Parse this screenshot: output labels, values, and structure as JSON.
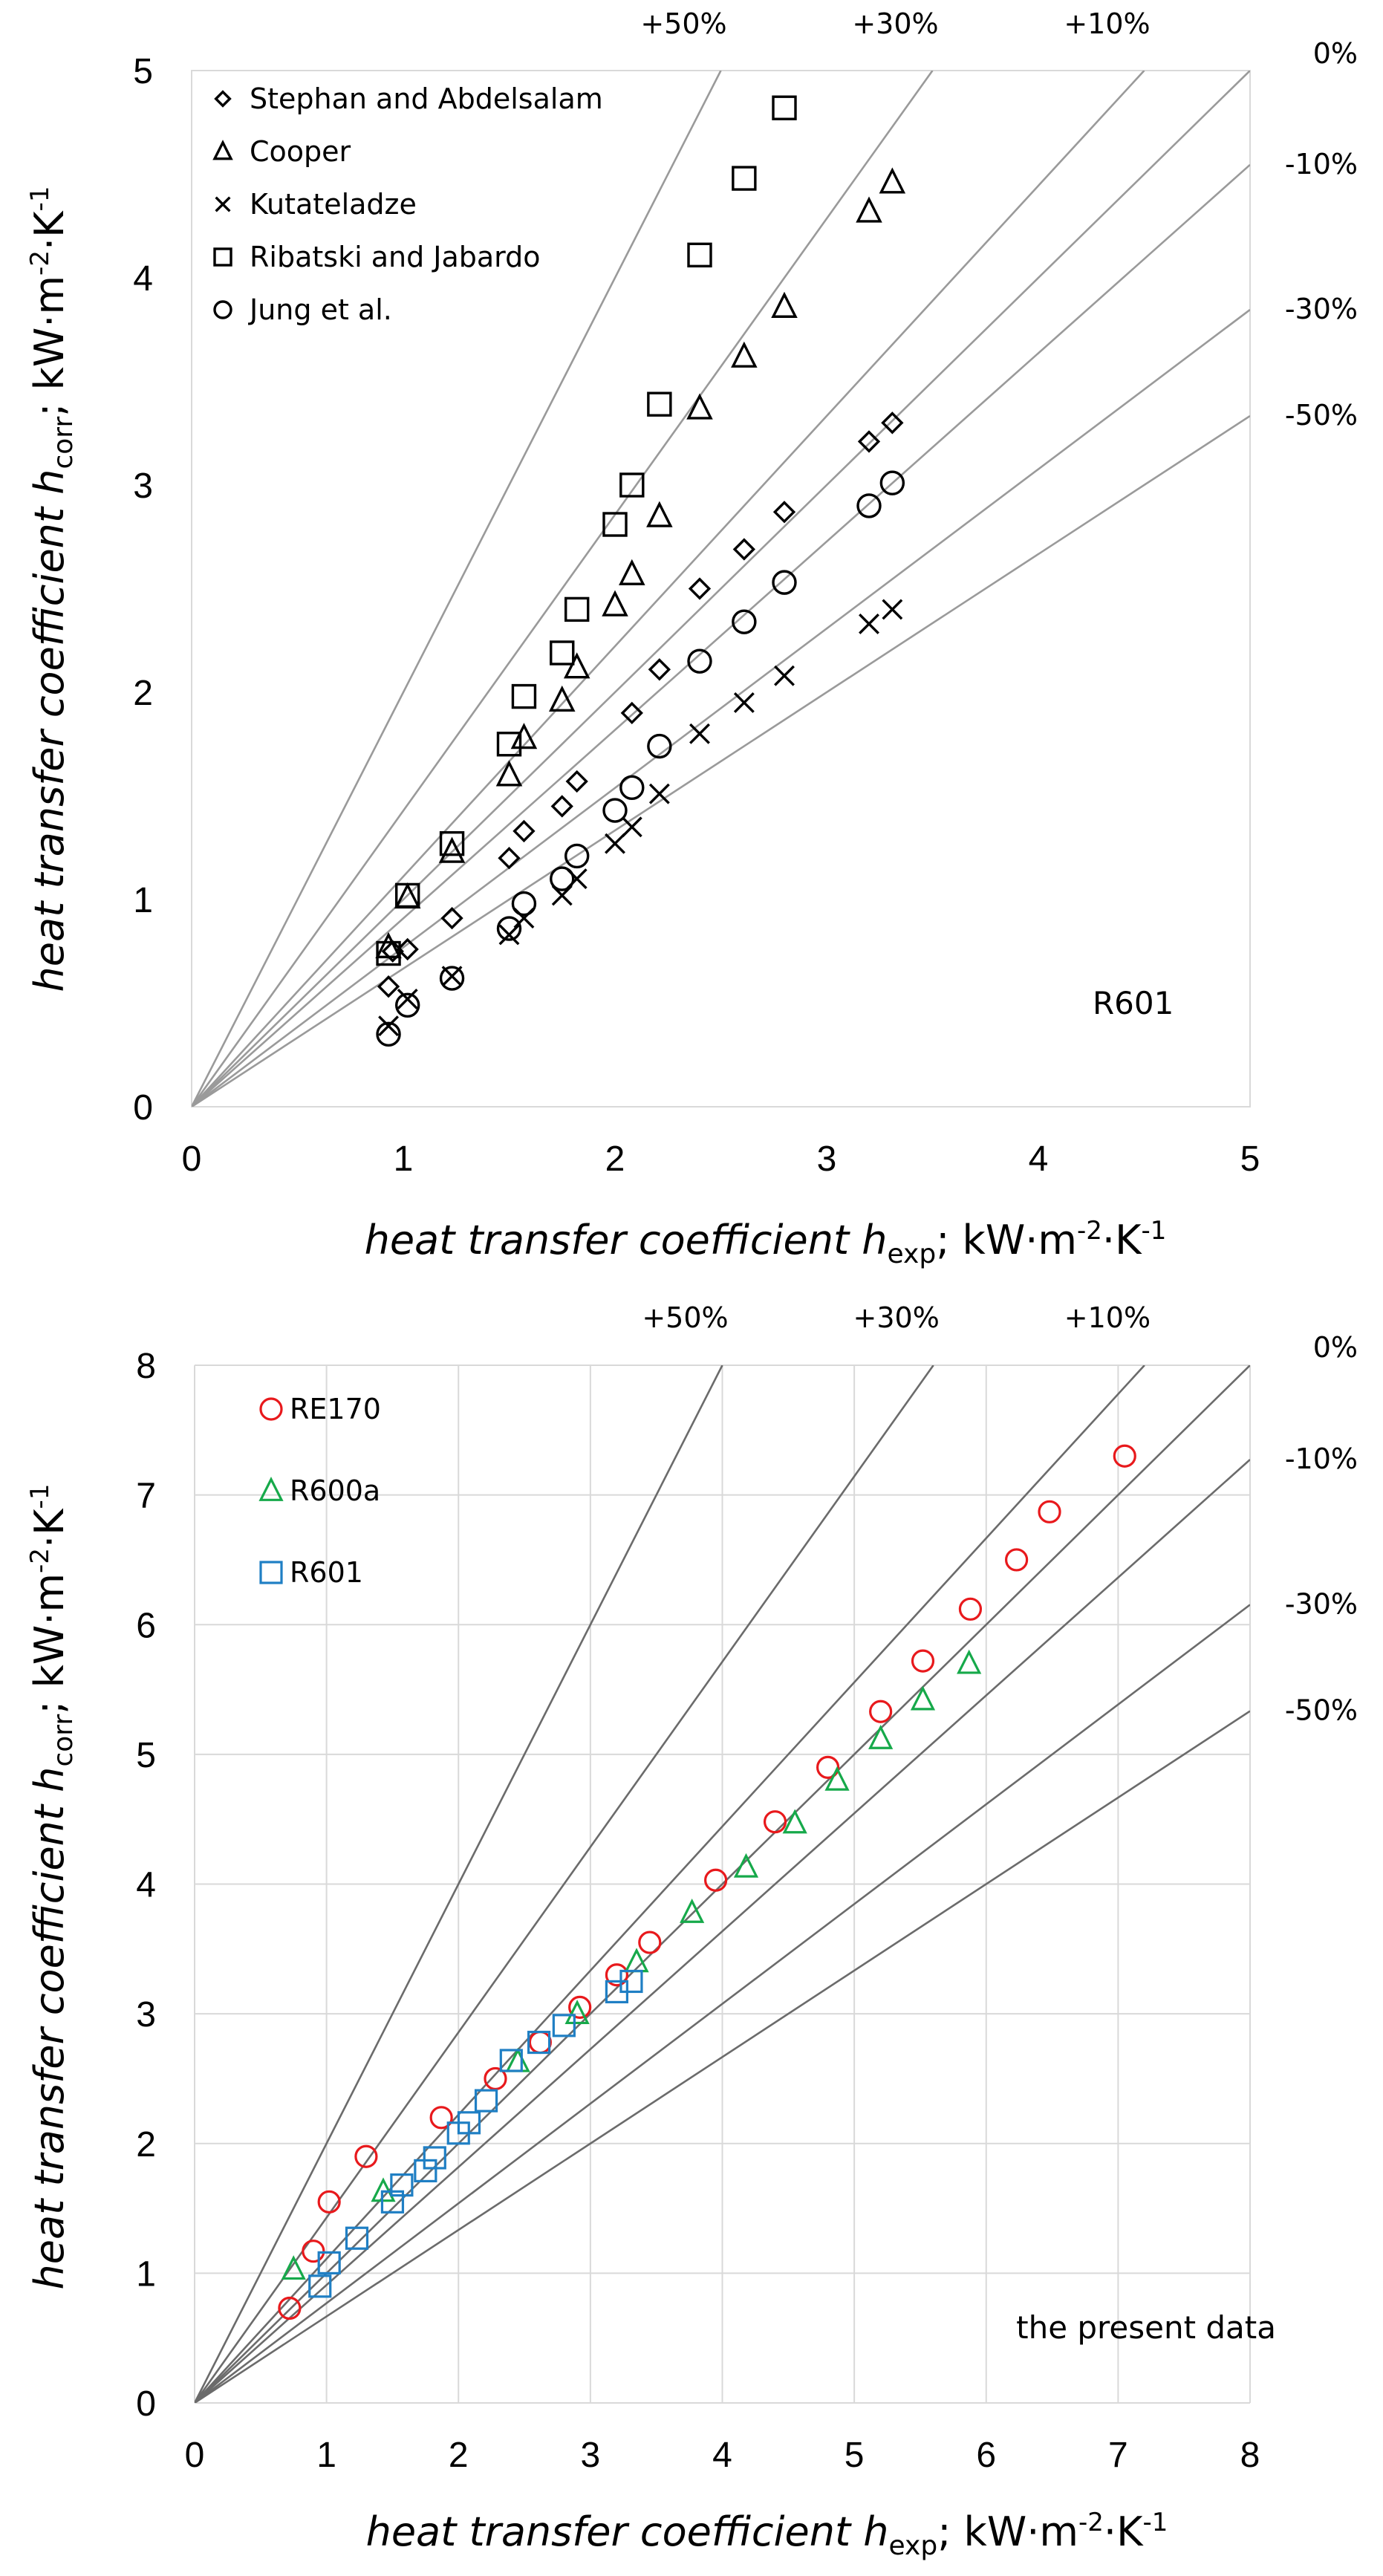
{
  "chart_data": [
    {
      "type": "scatter",
      "xlabel": "heat transfer coefficient h",
      "xlabel_sub": "exp",
      "ylabel": "heat transfer coefficient h",
      "ylabel_sub": "corr",
      "units_prefix": "; kW·m",
      "units_exp1": "-2",
      "units_mid": "·K",
      "units_exp2": "-1",
      "xlim": [
        0,
        5
      ],
      "ylim": [
        0,
        5
      ],
      "x_ticks": [
        "0",
        "1",
        "2",
        "3",
        "4",
        "5"
      ],
      "y_ticks": [
        "0",
        "1",
        "2",
        "3",
        "4",
        "5"
      ],
      "grid": false,
      "annotation": "R601",
      "deviation_lines": [
        {
          "label": "+50%",
          "slope": 2.0
        },
        {
          "label": "+30%",
          "slope": 1.4286
        },
        {
          "label": "+10%",
          "slope": 1.1111
        },
        {
          "label": "0%",
          "slope": 1.0
        },
        {
          "label": "-10%",
          "slope": 0.9091
        },
        {
          "label": "-30%",
          "slope": 0.7692
        },
        {
          "label": "-50%",
          "slope": 0.6667
        }
      ],
      "series": [
        {
          "name": "Stephan and Abdelsalam",
          "marker": "diamond",
          "color": "#000000",
          "x": [
            0.93,
            0.95,
            1.02,
            1.23,
            1.5,
            1.57,
            1.75,
            1.82,
            2.08,
            2.21,
            2.4,
            2.61,
            2.8,
            3.2,
            3.31
          ],
          "y": [
            0.58,
            0.75,
            0.76,
            0.91,
            1.2,
            1.33,
            1.45,
            1.57,
            1.9,
            2.11,
            2.5,
            2.69,
            2.87,
            3.21,
            3.3
          ]
        },
        {
          "name": "Cooper",
          "marker": "triangle",
          "color": "#000000",
          "x": [
            0.93,
            1.02,
            1.23,
            1.5,
            1.57,
            1.75,
            1.82,
            2.0,
            2.08,
            2.21,
            2.4,
            2.61,
            2.8,
            3.2,
            3.31
          ],
          "y": [
            0.77,
            1.01,
            1.23,
            1.6,
            1.78,
            1.96,
            2.12,
            2.42,
            2.57,
            2.85,
            3.37,
            3.62,
            3.86,
            4.32,
            4.46
          ]
        },
        {
          "name": "Kutateladze",
          "marker": "x",
          "color": "#000000",
          "x": [
            0.93,
            1.02,
            1.23,
            1.5,
            1.57,
            1.75,
            1.82,
            2.0,
            2.08,
            2.21,
            2.4,
            2.61,
            2.8,
            3.2,
            3.31
          ],
          "y": [
            0.39,
            0.52,
            0.63,
            0.83,
            0.91,
            1.02,
            1.1,
            1.27,
            1.35,
            1.51,
            1.8,
            1.95,
            2.08,
            2.33,
            2.4
          ]
        },
        {
          "name": "Ribatski and Jabardo",
          "marker": "square",
          "color": "#000000",
          "x": [
            0.93,
            1.02,
            1.23,
            1.5,
            1.57,
            1.75,
            1.82,
            2.0,
            2.08,
            2.21,
            2.4,
            2.61,
            2.8
          ],
          "y": [
            0.74,
            1.02,
            1.27,
            1.75,
            1.98,
            2.19,
            2.4,
            2.81,
            3.0,
            3.39,
            4.11,
            4.48,
            4.82
          ]
        },
        {
          "name": "Jung et al.",
          "marker": "circle",
          "color": "#000000",
          "x": [
            0.93,
            1.02,
            1.23,
            1.5,
            1.57,
            1.75,
            1.82,
            2.0,
            2.08,
            2.21,
            2.4,
            2.61,
            2.8,
            3.2,
            3.31
          ],
          "y": [
            0.35,
            0.49,
            0.62,
            0.86,
            0.98,
            1.1,
            1.21,
            1.43,
            1.54,
            1.74,
            2.15,
            2.34,
            2.53,
            2.9,
            3.01
          ]
        }
      ]
    },
    {
      "type": "scatter",
      "xlabel": "heat transfer coefficient h",
      "xlabel_sub": "exp",
      "ylabel": "heat transfer coefficient h",
      "ylabel_sub": "corr",
      "units_prefix": "; kW·m",
      "units_exp1": "-2",
      "units_mid": "·K",
      "units_exp2": "-1",
      "xlim": [
        0,
        8
      ],
      "ylim": [
        0,
        8
      ],
      "x_ticks": [
        "0",
        "1",
        "2",
        "3",
        "4",
        "5",
        "6",
        "7",
        "8"
      ],
      "y_ticks": [
        "0",
        "1",
        "2",
        "3",
        "4",
        "5",
        "6",
        "7",
        "8"
      ],
      "grid": true,
      "annotation": "the present data",
      "deviation_lines": [
        {
          "label": "+50%",
          "slope": 2.0
        },
        {
          "label": "+30%",
          "slope": 1.4286
        },
        {
          "label": "+10%",
          "slope": 1.1111
        },
        {
          "label": "0%",
          "slope": 1.0
        },
        {
          "label": "-10%",
          "slope": 0.9091
        },
        {
          "label": "-30%",
          "slope": 0.7692
        },
        {
          "label": "-50%",
          "slope": 0.6667
        }
      ],
      "series": [
        {
          "name": "RE170",
          "marker": "circle",
          "color": "#e8191c",
          "x": [
            0.72,
            0.9,
            1.02,
            1.3,
            1.87,
            2.28,
            2.62,
            2.92,
            3.2,
            3.45,
            3.95,
            4.4,
            4.8,
            5.2,
            5.52,
            5.88,
            6.23,
            6.48,
            7.05
          ],
          "y": [
            0.73,
            1.17,
            1.55,
            1.9,
            2.2,
            2.5,
            2.78,
            3.05,
            3.3,
            3.55,
            4.03,
            4.48,
            4.9,
            5.33,
            5.72,
            6.12,
            6.5,
            6.87,
            7.3
          ]
        },
        {
          "name": "R600a",
          "marker": "triangle",
          "color": "#16a94a",
          "x": [
            0.75,
            1.43,
            2.45,
            2.9,
            3.35,
            3.77,
            4.18,
            4.55,
            4.87,
            5.2,
            5.52,
            5.87
          ],
          "y": [
            1.03,
            1.63,
            2.63,
            3.0,
            3.4,
            3.78,
            4.13,
            4.47,
            4.8,
            5.12,
            5.42,
            5.7
          ]
        },
        {
          "name": "R601",
          "marker": "square",
          "color": "#1f7fc4",
          "x": [
            0.95,
            1.02,
            1.23,
            1.5,
            1.57,
            1.75,
            1.82,
            2.0,
            2.08,
            2.21,
            2.4,
            2.61,
            2.8,
            3.2,
            3.31
          ],
          "y": [
            0.9,
            1.08,
            1.27,
            1.55,
            1.68,
            1.79,
            1.89,
            2.08,
            2.16,
            2.33,
            2.64,
            2.78,
            2.91,
            3.17,
            3.25
          ]
        }
      ]
    }
  ]
}
